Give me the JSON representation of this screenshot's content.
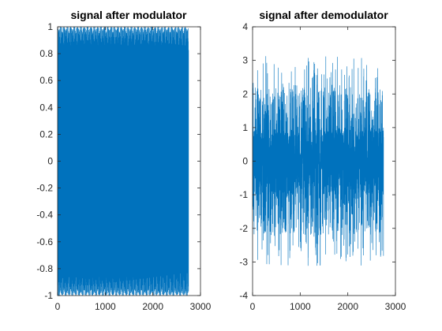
{
  "chart_data": [
    {
      "type": "line",
      "title": "signal after modulator",
      "xlabel": "",
      "ylabel": "",
      "xlim": [
        0,
        3000
      ],
      "ylim": [
        -1,
        1
      ],
      "xticks": [
        0,
        1000,
        2000,
        3000
      ],
      "xtick_labels": [
        "0",
        "1000",
        "2000",
        "3000"
      ],
      "yticks": [
        -1,
        -0.8,
        -0.6,
        -0.4,
        -0.2,
        0,
        0.2,
        0.4,
        0.6,
        0.8,
        1
      ],
      "ytick_labels": [
        "-1",
        "-0.8",
        "-0.6",
        "-0.4",
        "-0.2",
        "0",
        "0.2",
        "0.4",
        "0.6",
        "0.8",
        "1"
      ],
      "grid": false,
      "color": "#0072BD",
      "series": [
        {
          "n_points": 2750,
          "x_range": [
            1,
            2750
          ],
          "y_range": [
            -1,
            1
          ],
          "description_values": "dense oscillation filling -1 to 1 band"
        }
      ]
    },
    {
      "type": "line",
      "title": "signal after demodulator",
      "xlabel": "",
      "ylabel": "",
      "xlim": [
        0,
        3000
      ],
      "ylim": [
        -4,
        4
      ],
      "xticks": [
        0,
        1000,
        2000,
        3000
      ],
      "xtick_labels": [
        "0",
        "1000",
        "2000",
        "3000"
      ],
      "yticks": [
        -4,
        -3,
        -2,
        -1,
        0,
        1,
        2,
        3,
        4
      ],
      "ytick_labels": [
        "-4",
        "-3",
        "-2",
        "-1",
        "0",
        "1",
        "2",
        "3",
        "4"
      ],
      "grid": false,
      "color": "#0072BD",
      "series": [
        {
          "n_points": 2750,
          "x_range": [
            1,
            2750
          ],
          "y_range": [
            -3.14,
            3.14
          ]
        }
      ]
    }
  ]
}
